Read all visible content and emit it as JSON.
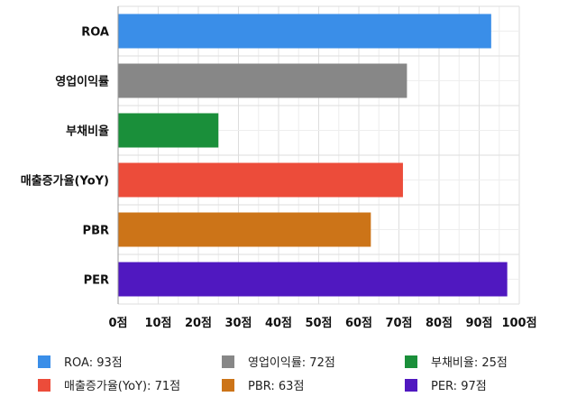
{
  "chart_data": {
    "type": "bar",
    "orientation": "horizontal",
    "categories": [
      "ROA",
      "영업이익률",
      "부채비율",
      "매출증가율(YoY)",
      "PBR",
      "PER"
    ],
    "values": [
      93,
      72,
      25,
      71,
      63,
      97
    ],
    "colors": [
      "#3a8ee8",
      "#878787",
      "#1a8f3a",
      "#ec4c3a",
      "#cc7418",
      "#5018c0"
    ],
    "xlim": [
      0,
      100
    ],
    "xticks": [
      0,
      10,
      20,
      30,
      40,
      50,
      60,
      70,
      80,
      90,
      100
    ],
    "tick_unit": "점",
    "grid": true,
    "legend": {
      "placement": "bottom",
      "items": [
        "ROA: 93점",
        "영업이익률: 72점",
        "부채비율: 25점",
        "매출증가율(YoY): 71점",
        "PBR: 63점",
        "PER: 97점"
      ]
    }
  }
}
